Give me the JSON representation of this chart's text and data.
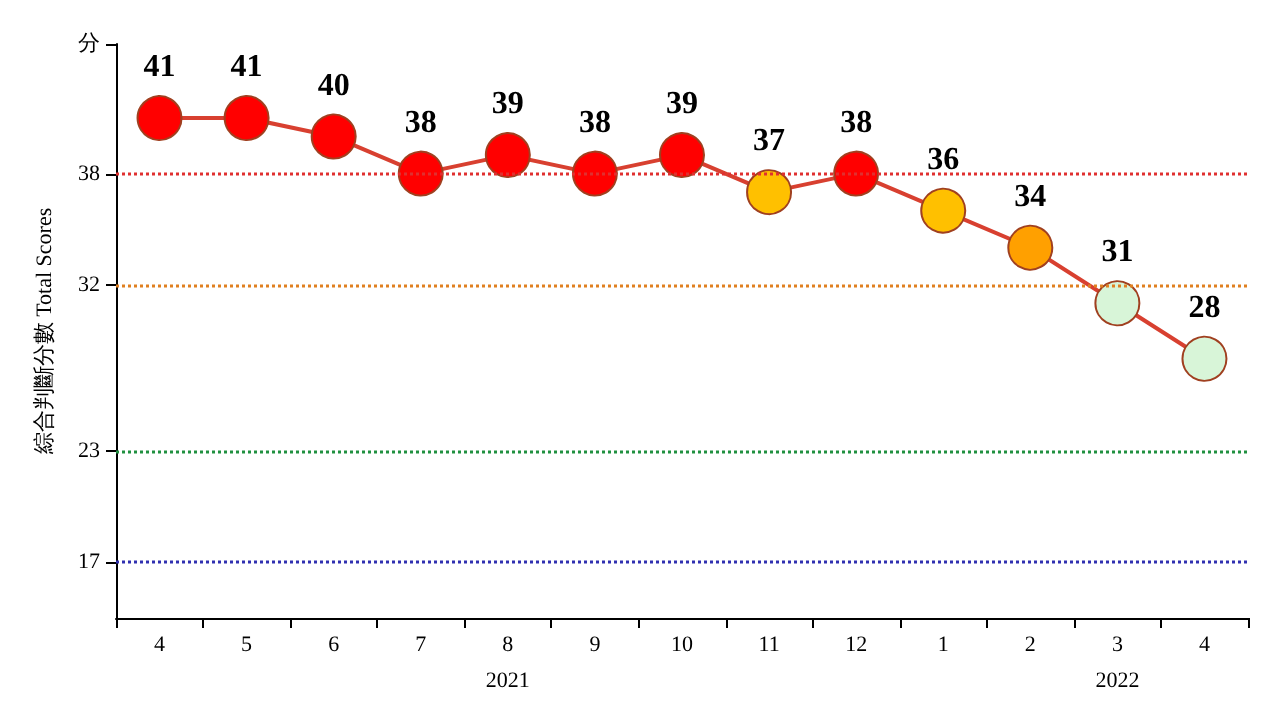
{
  "chart_data": {
    "type": "line",
    "ylabel": "綜合判斷分數 Total Scores",
    "categories": [
      "4",
      "5",
      "6",
      "7",
      "8",
      "9",
      "10",
      "11",
      "12",
      "1",
      "2",
      "3",
      "4"
    ],
    "series": [
      {
        "color": "#d84030",
        "values": [
          41,
          41,
          40,
          38,
          39,
          38,
          39,
          37,
          38,
          36,
          34,
          31,
          28
        ],
        "colors": [
          "#ff0000",
          "#ff0000",
          "#ff0000",
          "#ff0000",
          "#ff0000",
          "#ff0000",
          "#ff0000",
          "#ffc000",
          "#ff0000",
          "#ffc000",
          "#ffa000",
          "#d8f5d8",
          "#d8f5d8"
        ]
      }
    ],
    "ylim": [
      14,
      45
    ],
    "yticks": [
      17,
      23,
      32,
      38,
      {
        "value": 45,
        "label": "分"
      }
    ],
    "ref_lines": [
      {
        "axis": "y",
        "value": 38,
        "color": "#e03030",
        "line_style": "dotted"
      },
      {
        "axis": "y",
        "value": 32,
        "color": "#e08020",
        "line_style": "dotted"
      },
      {
        "axis": "y",
        "value": 23,
        "color": "#209040",
        "line_style": "dotted"
      },
      {
        "axis": "y",
        "value": 17,
        "color": "#3030b0",
        "line_style": "dotted"
      }
    ],
    "annotations": [
      "2021",
      "2022"
    ],
    "data_labels": true,
    "marker": "circle",
    "line_style": "solid",
    "grid": false
  }
}
